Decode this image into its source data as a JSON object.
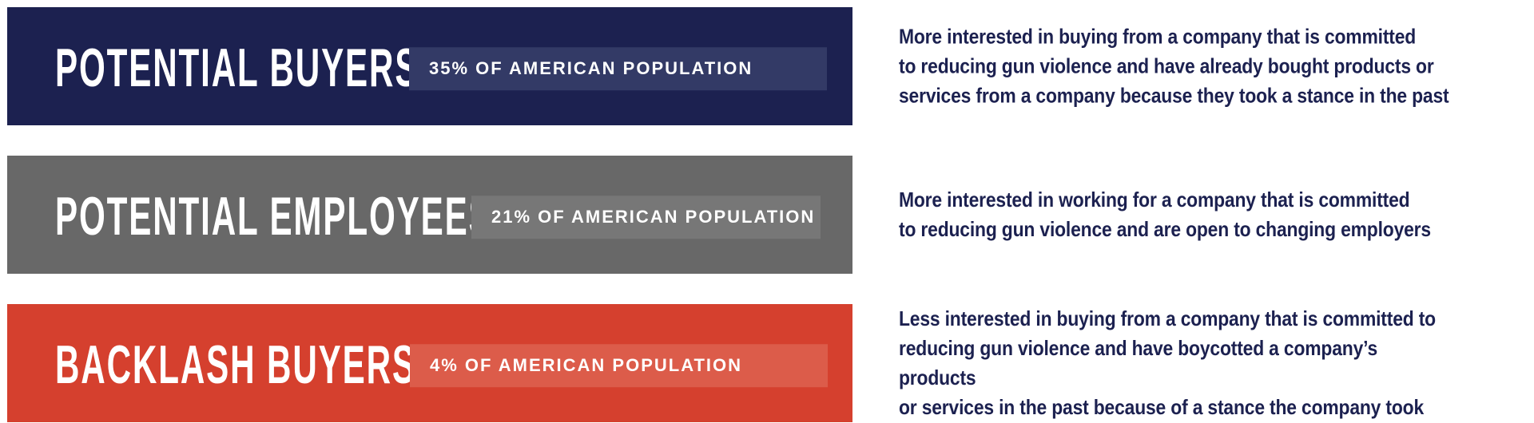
{
  "chart_data": {
    "type": "bar",
    "title": "",
    "categories": [
      "Potential Buyers",
      "Potential Employees",
      "Backlash Buyers"
    ],
    "values": [
      35,
      21,
      4
    ],
    "unit": "% of American population",
    "legend_position": "none",
    "grid": false,
    "annotations": [
      "More interested in buying from a company that is committed to reducing gun violence and have already bought products or services from a company because they took a stance in the past",
      "More interested in working for a company that is committed to reducing gun violence and are open to changing employers",
      "Less interested in buying from a company that is committed to reducing gun violence and have boycotted a company’s products or services in the past because of a stance the company took"
    ]
  },
  "colors": {
    "description_text": "#1c2150",
    "badge_text": "#ffffff",
    "title_text": "#ffffff"
  },
  "rows": [
    {
      "title": "POTENTIAL BUYERS",
      "stat_label": "35% OF AMERICAN POPULATION",
      "bar_color": "#1c2150",
      "badge_color": "#333a66",
      "description_lines": [
        "More interested in buying from a company that is committed",
        "to reducing gun violence and have already bought products or",
        "services from a company because they took a stance in the past"
      ]
    },
    {
      "title": "POTENTIAL EMPLOYEES",
      "stat_label": "21% OF AMERICAN POPULATION",
      "bar_color": "#686868",
      "badge_color": "#777777",
      "description_lines": [
        "More interested in working for a company that is committed",
        "to reducing gun violence and are open to changing employers"
      ]
    },
    {
      "title": "BACKLASH BUYERS",
      "stat_label": "4% OF AMERICAN POPULATION",
      "bar_color": "#d5402e",
      "badge_color": "#dc5c4a",
      "description_lines": [
        "Less interested in buying from a company that is committed to",
        "reducing gun violence and have boycotted a company’s products",
        "or services in the past because of a stance the company took"
      ]
    }
  ]
}
